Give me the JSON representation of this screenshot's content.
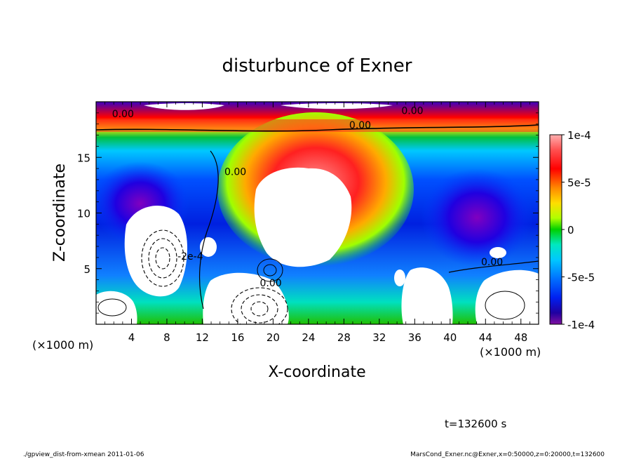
{
  "chart_data": {
    "type": "heatmap",
    "title": "disturbunce of Exner",
    "xlabel": "X-coordinate",
    "ylabel": "Z-coordinate",
    "x_unit": "(×1000 m)",
    "y_unit": "(×1000 m)",
    "xlim": [
      0,
      50
    ],
    "ylim": [
      0,
      20
    ],
    "x_ticks": [
      4,
      8,
      12,
      16,
      20,
      24,
      28,
      32,
      36,
      40,
      44,
      48
    ],
    "y_ticks": [
      5,
      10,
      15
    ],
    "colorbar": {
      "range": [
        -0.0001,
        0.0001
      ],
      "tick_labels": [
        "1e-4",
        "5e-5",
        "0",
        "-5e-5",
        "-1e-4"
      ],
      "tick_values": [
        0.0001,
        5e-05,
        0,
        -5e-05,
        -0.0001
      ]
    },
    "contour_labels": [
      {
        "text": "0.00",
        "x": 1.8,
        "z": 18.6
      },
      {
        "text": "0.00",
        "x": 34.5,
        "z": 18.9
      },
      {
        "text": "0.00",
        "x": 28.6,
        "z": 17.6
      },
      {
        "text": "0.00",
        "x": 14.5,
        "z": 13.4
      },
      {
        "text": "-2e-4",
        "x": 9.2,
        "z": 5.8
      },
      {
        "text": "0.00",
        "x": 18.5,
        "z": 3.4
      },
      {
        "text": "0.00",
        "x": 43.5,
        "z": 5.3
      }
    ],
    "time_label": "t=132600 s"
  },
  "footer": {
    "left": "./gpview_dist-from-xmean  2011-01-06",
    "right": "MarsCond_Exner.nc@Exner,x=0:50000,z=0:20000,t=132600"
  }
}
